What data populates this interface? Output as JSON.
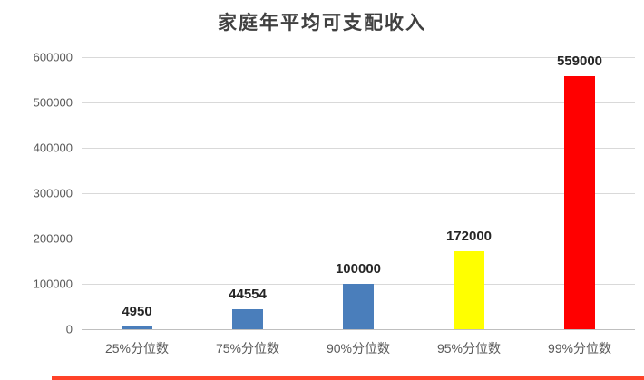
{
  "chart_data": {
    "type": "bar",
    "title": "家庭年平均可支配收入",
    "categories": [
      "25%分位数",
      "75%分位数",
      "90%分位数",
      "95%分位数",
      "99%分位数"
    ],
    "values": [
      4950,
      44554,
      100000,
      172000,
      559000
    ],
    "data_labels": [
      "4950",
      "44554",
      "100000",
      "172000",
      "559000"
    ],
    "bar_colors": [
      "#4a7ebb",
      "#4a7ebb",
      "#4a7ebb",
      "#ffff00",
      "#ff0000"
    ],
    "ylim": [
      0,
      600000
    ],
    "y_ticks": [
      0,
      100000,
      200000,
      300000,
      400000,
      500000,
      600000
    ],
    "xlabel": "",
    "ylabel": "",
    "grid": true,
    "legend": "none"
  },
  "colors": {
    "background": "#ffffff",
    "gridline": "#d9d9d9",
    "axis_line": "#bfbfbf",
    "tick_label": "#595959",
    "title_text": "#404040",
    "data_label": "#262626",
    "bottom_strip": "#ff4229"
  }
}
